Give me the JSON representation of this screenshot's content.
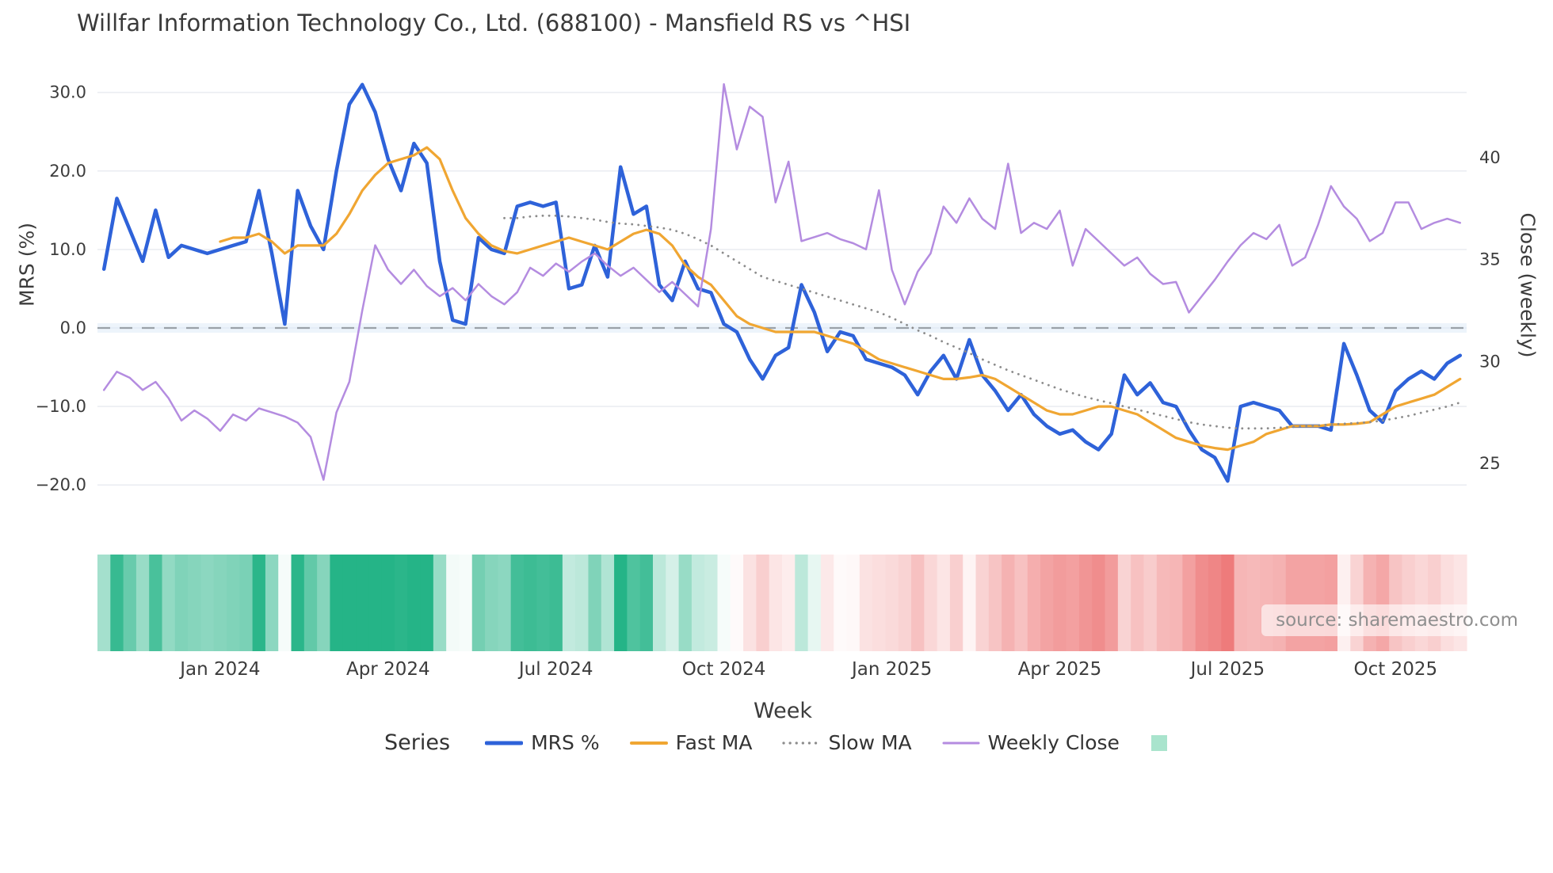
{
  "source": "source: sharemaestro.com",
  "legend": {
    "title": "Series",
    "items": [
      {
        "key": "mrs",
        "label": "MRS %",
        "color": "#2e62d9",
        "style": "solid",
        "width": 5
      },
      {
        "key": "fast-ma",
        "label": "Fast MA",
        "color": "#f0a632",
        "style": "solid",
        "width": 4
      },
      {
        "key": "slow-ma",
        "label": "Slow MA",
        "color": "#8c8c8c",
        "style": "dotted",
        "width": 3.2
      },
      {
        "key": "weekly-close",
        "label": "Weekly Close",
        "color": "#b48ce0",
        "style": "solid",
        "width": 3
      },
      {
        "key": "heatmap-swatch",
        "label": "",
        "color": "#a9e4cd",
        "style": "patch",
        "width": 0
      }
    ]
  },
  "chart_data": {
    "type": "line",
    "title": "Willfar Information Technology Co., Ltd. (688100) - Mansfield RS vs ^HSI",
    "xlabel": "Week",
    "ylabel_left": "MRS (%)",
    "ylabel_right": "Close (weekly)",
    "x_unit": "week",
    "n_weeks": 106,
    "grid": "horizontal",
    "zero_line": true,
    "x_ticks": [
      {
        "label": "Jan 2024",
        "week": 9
      },
      {
        "label": "Apr 2024",
        "week": 22
      },
      {
        "label": "Jul 2024",
        "week": 35
      },
      {
        "label": "Oct 2024",
        "week": 48
      },
      {
        "label": "Jan 2025",
        "week": 61
      },
      {
        "label": "Apr 2025",
        "week": 74
      },
      {
        "label": "Jul 2025",
        "week": 87
      },
      {
        "label": "Oct 2025",
        "week": 100
      }
    ],
    "left_axis": {
      "tick_values": [
        30,
        20,
        10,
        0,
        -10,
        -20
      ],
      "tick_labels": [
        "30.0",
        "20.0",
        "10.0",
        "0.0",
        "−10.0",
        "−20.0"
      ],
      "ylim": [
        -24,
        33
      ]
    },
    "right_axis": {
      "tick_values": [
        40,
        35,
        30,
        25
      ],
      "tick_labels": [
        "40",
        "35",
        "30",
        "25"
      ],
      "ylim": [
        24,
        44
      ]
    },
    "series": [
      {
        "name": "MRS %",
        "axis": "left",
        "color": "#2e62d9",
        "style": "solid",
        "width": 4.5,
        "values": [
          7.5,
          16.5,
          12.5,
          8.5,
          15,
          9,
          10.5,
          10,
          9.5,
          10,
          10.5,
          11,
          17.5,
          9.5,
          0.5,
          17.5,
          13,
          10,
          20,
          28.5,
          31,
          27.5,
          21.5,
          17.5,
          23.5,
          21,
          8.5,
          1,
          0.5,
          11.5,
          10,
          9.5,
          15.5,
          16,
          15.5,
          16,
          5,
          5.5,
          10.5,
          6.5,
          20.5,
          14.5,
          15.5,
          5.5,
          3.5,
          8.5,
          5,
          4.5,
          0.5,
          -0.5,
          -4,
          -6.5,
          -3.5,
          -2.5,
          5.5,
          2,
          -3,
          -0.5,
          -1,
          -4,
          -4.5,
          -5,
          -6,
          -8.5,
          -5.5,
          -3.5,
          -6.5,
          -1.5,
          -6,
          -8,
          -10.5,
          -8.5,
          -11,
          -12.5,
          -13.5,
          -13,
          -14.5,
          -15.5,
          -13.5,
          -6,
          -8.5,
          -7,
          -9.5,
          -10,
          -13,
          -15.5,
          -16.5,
          -19.5,
          -10,
          -9.5,
          -10,
          -10.5,
          -12.5,
          -12.5,
          -12.5,
          -13,
          -2,
          -6,
          -10.5,
          -12,
          -8,
          -6.5,
          -5.5,
          -6.5,
          -4.5,
          -3.5
        ]
      },
      {
        "name": "Fast MA",
        "axis": "left",
        "color": "#f0a632",
        "style": "solid",
        "width": 3.2,
        "values": [
          null,
          null,
          null,
          null,
          null,
          null,
          null,
          null,
          null,
          11,
          11.5,
          11.5,
          12,
          11,
          9.5,
          10.5,
          10.5,
          10.5,
          12,
          14.5,
          17.5,
          19.5,
          21,
          21.5,
          22,
          23,
          21.5,
          17.5,
          14,
          12,
          10.5,
          9.8,
          9.5,
          10,
          10.5,
          11,
          11.5,
          11,
          10.5,
          10,
          11,
          12,
          12.5,
          12,
          10.5,
          8,
          6.5,
          5.5,
          3.5,
          1.5,
          0.5,
          0,
          -0.5,
          -0.5,
          -0.5,
          -0.5,
          -1,
          -1.5,
          -2,
          -3,
          -4,
          -4.5,
          -5,
          -5.5,
          -6,
          -6.5,
          -6.5,
          -6.3,
          -6,
          -6.5,
          -7.5,
          -8.5,
          -9.5,
          -10.5,
          -11,
          -11,
          -10.5,
          -10,
          -10,
          -10.5,
          -11,
          -12,
          -13,
          -14,
          -14.5,
          -15,
          -15.3,
          -15.5,
          -15,
          -14.5,
          -13.5,
          -13,
          -12.5,
          -12.5,
          -12.5,
          -12.3,
          -12.3,
          -12.2,
          -12,
          -11,
          -10,
          -9.5,
          -9,
          -8.5,
          -7.5,
          -6.5
        ]
      },
      {
        "name": "Slow MA",
        "axis": "left",
        "color": "#8c8c8c",
        "style": "dotted",
        "width": 2.8,
        "values": [
          null,
          null,
          null,
          null,
          null,
          null,
          null,
          null,
          null,
          null,
          null,
          null,
          null,
          null,
          null,
          null,
          null,
          null,
          null,
          null,
          null,
          null,
          null,
          null,
          null,
          null,
          null,
          null,
          null,
          null,
          null,
          14,
          14,
          14.2,
          14.3,
          14.3,
          14.2,
          14,
          13.8,
          13.5,
          13.3,
          13.2,
          13,
          12.8,
          12.5,
          12,
          11.3,
          10.5,
          9.5,
          8.5,
          7.5,
          6.5,
          6,
          5.5,
          5,
          4.5,
          4,
          3.5,
          3,
          2.5,
          2,
          1.3,
          0.5,
          -0.3,
          -1,
          -1.8,
          -2.5,
          -3.2,
          -4,
          -4.7,
          -5.4,
          -6,
          -6.6,
          -7.2,
          -7.8,
          -8.3,
          -8.8,
          -9.2,
          -9.6,
          -10,
          -10.4,
          -10.8,
          -11.2,
          -11.6,
          -12,
          -12.3,
          -12.5,
          -12.7,
          -12.8,
          -12.8,
          -12.8,
          -12.7,
          -12.6,
          -12.5,
          -12.4,
          -12.3,
          -12.2,
          -12.1,
          -12,
          -11.8,
          -11.5,
          -11.2,
          -10.8,
          -10.4,
          -10,
          -9.5
        ]
      },
      {
        "name": "Weekly Close",
        "axis": "right",
        "color": "#b48ce0",
        "style": "solid",
        "width": 2.5,
        "values": [
          28.6,
          29.5,
          29.2,
          28.6,
          29,
          28.2,
          27.1,
          27.6,
          27.2,
          26.6,
          27.4,
          27.1,
          27.7,
          27.5,
          27.3,
          27,
          26.3,
          24.2,
          27.5,
          29,
          32.5,
          35.7,
          34.5,
          33.8,
          34.5,
          33.7,
          33.2,
          33.6,
          33,
          33.8,
          33.2,
          32.8,
          33.4,
          34.6,
          34.2,
          34.8,
          34.4,
          34.9,
          35.3,
          34.7,
          34.2,
          34.6,
          34,
          33.4,
          33.9,
          33.3,
          32.7,
          36.5,
          43.6,
          40.4,
          42.5,
          42,
          37.8,
          39.8,
          35.9,
          36.1,
          36.3,
          36,
          35.8,
          35.5,
          38.4,
          34.5,
          32.8,
          34.4,
          35.3,
          37.6,
          36.8,
          38,
          37,
          36.5,
          39.7,
          36.3,
          36.8,
          36.5,
          37.4,
          34.7,
          36.5,
          35.9,
          35.3,
          34.7,
          35.1,
          34.3,
          33.8,
          33.9,
          32.4,
          33.2,
          34,
          34.9,
          35.7,
          36.3,
          36,
          36.7,
          34.7,
          35.1,
          36.7,
          38.6,
          37.6,
          37,
          35.9,
          36.3,
          37.8,
          37.8,
          36.5,
          36.8,
          37,
          36.8
        ]
      }
    ],
    "heatmap": {
      "based_on": "MRS %",
      "positive_color": "#25b487",
      "negative_color": "#ee7b7b",
      "scale_max": 18
    }
  }
}
